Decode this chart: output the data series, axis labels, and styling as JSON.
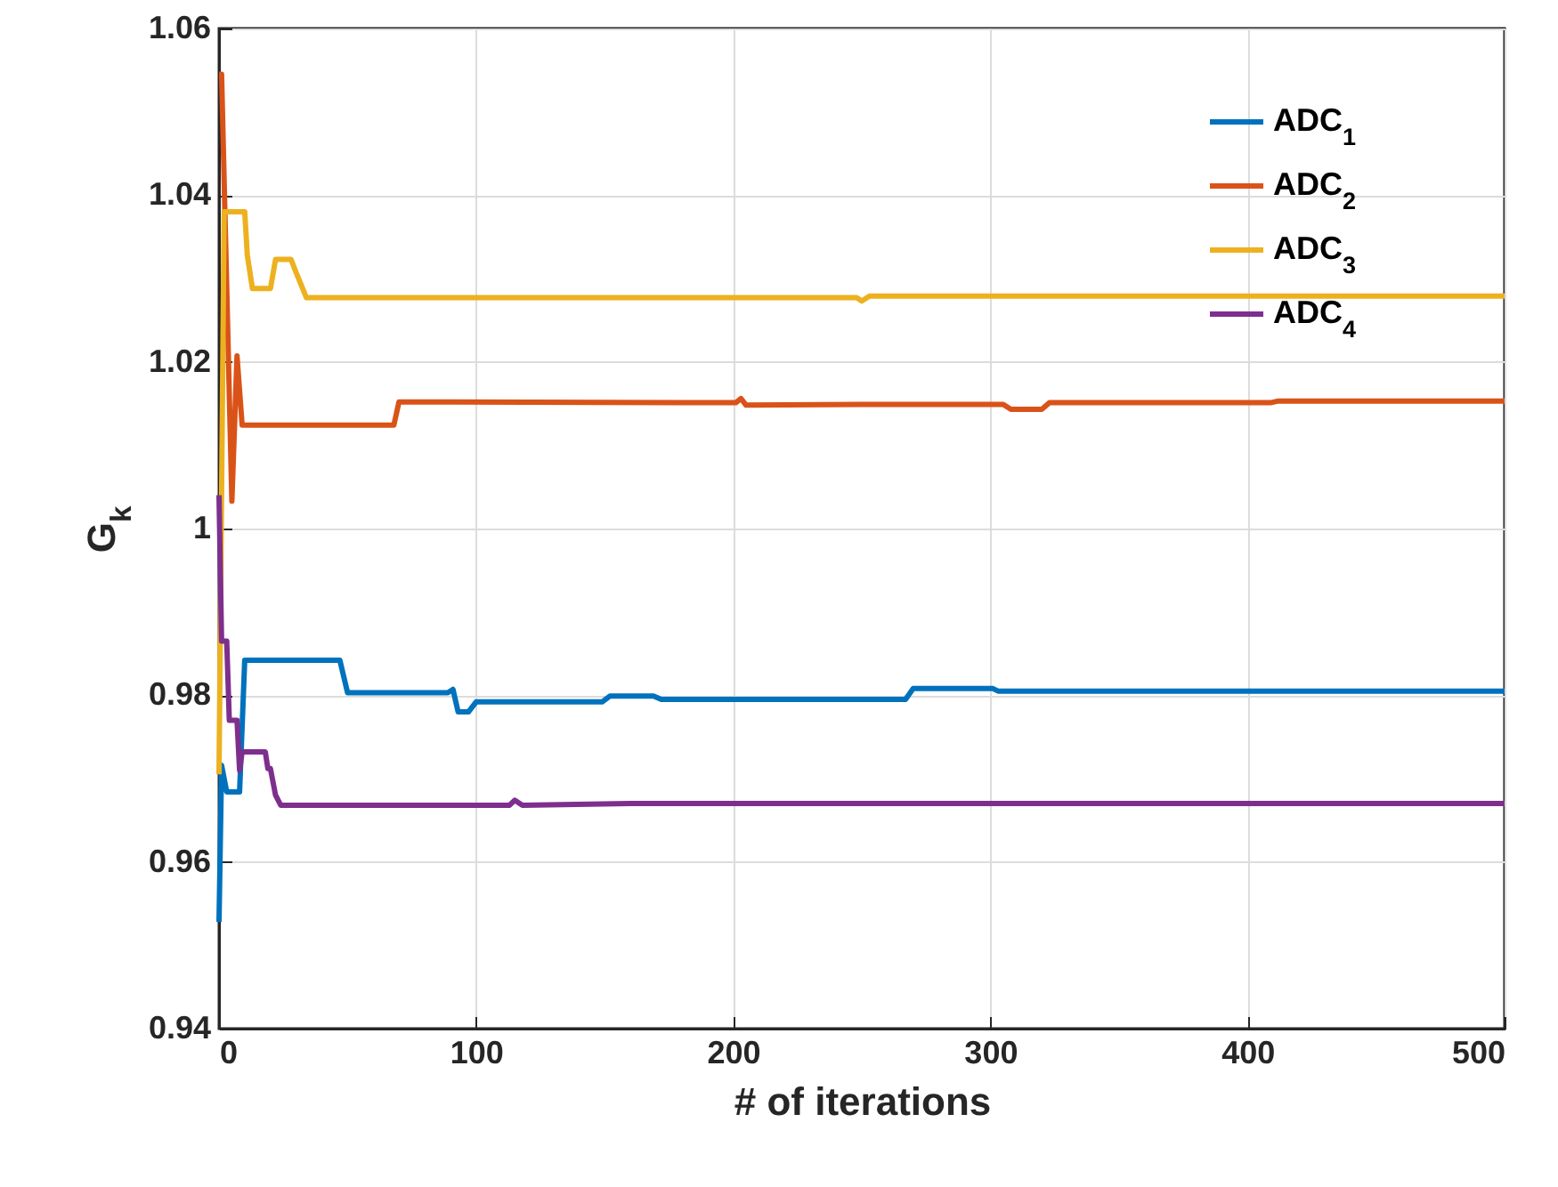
{
  "chart_data": {
    "type": "line",
    "xlabel": "# of iterations",
    "ylabel": "G$_{k}$",
    "xlim": [
      0,
      500
    ],
    "xticks": [
      0,
      100,
      200,
      300,
      400,
      500
    ],
    "ylim": [
      0.94,
      1.06
    ],
    "yticks": [
      0.94,
      0.96,
      0.98,
      1,
      1.02,
      1.04,
      1.06
    ],
    "grid": true,
    "legend": "top right",
    "line_style": "solid",
    "marker": "none",
    "series": [
      {
        "name": "ADC$_{1}$",
        "color": "#0072bd",
        "x": [
          0,
          1,
          3,
          8,
          10,
          47,
          50,
          89,
          91,
          93,
          97,
          100,
          149,
          152,
          169,
          172,
          267,
          270,
          301,
          303,
          500
        ],
        "values": [
          0.9528,
          0.9716,
          0.9684,
          0.9684,
          0.9842,
          0.9842,
          0.9803,
          0.9803,
          0.9807,
          0.978,
          0.978,
          0.9792,
          0.9792,
          0.9799,
          0.9799,
          0.9795,
          0.9795,
          0.9808,
          0.9808,
          0.9805,
          0.9805
        ]
      },
      {
        "name": "ADC$_{2}$",
        "color": "#d95319",
        "x": [
          0,
          1,
          5,
          7,
          9,
          68,
          70,
          201,
          203,
          205,
          250,
          305,
          308,
          320,
          323,
          409,
          412,
          500
        ],
        "values": [
          1.0545,
          1.0545,
          1.0033,
          1.0207,
          1.0124,
          1.0124,
          1.0152,
          1.0151,
          1.0156,
          1.0148,
          1.0149,
          1.0149,
          1.0143,
          1.0143,
          1.0151,
          1.0151,
          1.0153,
          1.0153
        ]
      },
      {
        "name": "ADC$_{3}$",
        "color": "#edb120",
        "x": [
          0,
          2,
          10,
          11,
          13,
          20,
          22,
          28,
          30,
          34,
          248,
          250,
          253,
          500
        ],
        "values": [
          0.9705,
          1.038,
          1.038,
          1.0328,
          1.0288,
          1.0288,
          1.0323,
          1.0323,
          1.0307,
          1.0277,
          1.0277,
          1.0273,
          1.0279,
          1.0279
        ]
      },
      {
        "name": "ADC$_{4}$",
        "color": "#7e2f8e",
        "x": [
          0,
          1,
          3,
          4,
          7,
          8,
          9,
          18,
          19,
          20,
          22,
          24,
          113,
          115,
          118,
          160,
          500
        ],
        "values": [
          1.004,
          0.9865,
          0.9865,
          0.977,
          0.977,
          0.971,
          0.9732,
          0.9732,
          0.9712,
          0.9712,
          0.968,
          0.9668,
          0.9668,
          0.9674,
          0.9668,
          0.967,
          0.967
        ]
      }
    ]
  }
}
